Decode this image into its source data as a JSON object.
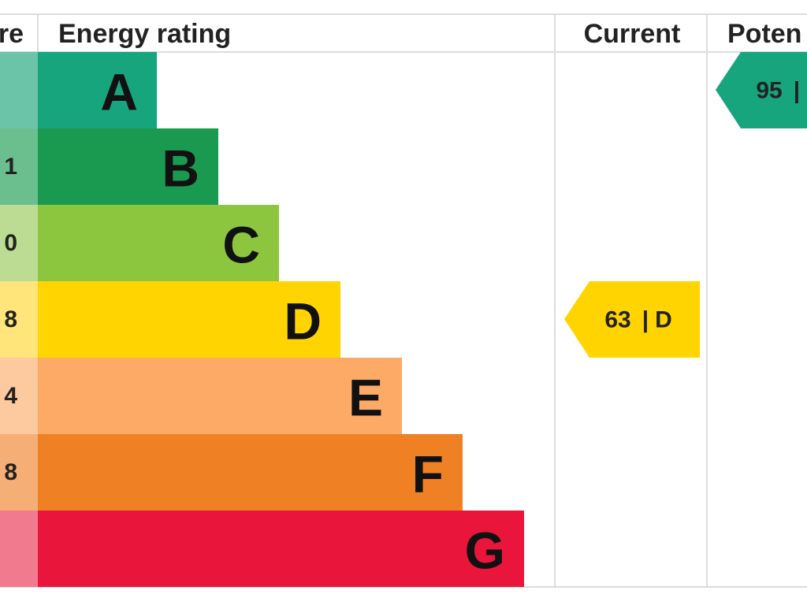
{
  "header": {
    "score": "re",
    "rating": "Energy rating",
    "current": "Current",
    "potential": "Poten"
  },
  "rows": [
    {
      "letter": "A"
    },
    {
      "letter": "B",
      "score": "1"
    },
    {
      "letter": "C",
      "score": "0"
    },
    {
      "letter": "D",
      "score": "8"
    },
    {
      "letter": "E",
      "score": "4"
    },
    {
      "letter": "F",
      "score": "8"
    },
    {
      "letter": "G"
    }
  ],
  "current": {
    "score": "63",
    "band": "D"
  },
  "potential": {
    "score": "95"
  }
}
